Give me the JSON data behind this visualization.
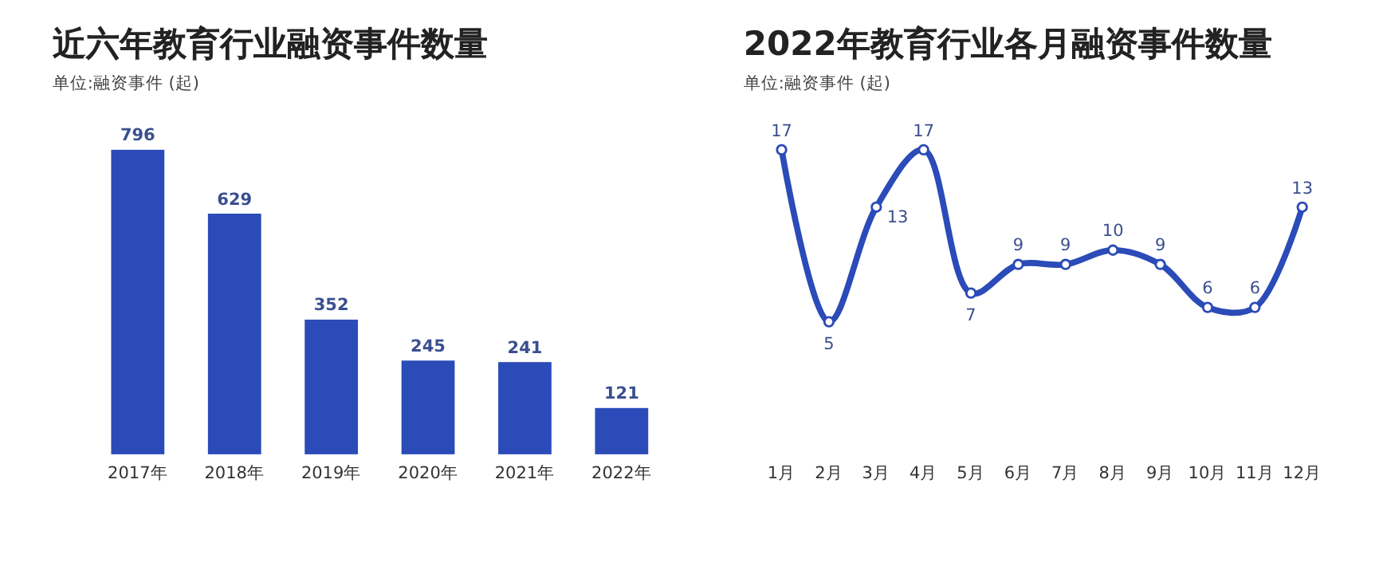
{
  "chart_data": [
    {
      "type": "bar",
      "title": "近六年教育行业融资事件数量",
      "subtitle": "单位:融资事件 (起)",
      "categories": [
        "2017年",
        "2018年",
        "2019年",
        "2020年",
        "2021年",
        "2022年"
      ],
      "values": [
        796,
        629,
        352,
        245,
        241,
        121
      ],
      "color": "#2b4bb8",
      "data_labels": true
    },
    {
      "type": "line",
      "title": "2022年教育行业各月融资事件数量",
      "subtitle": "单位:融资事件 (起)",
      "categories": [
        "1月",
        "2月",
        "3月",
        "4月",
        "5月",
        "6月",
        "7月",
        "8月",
        "9月",
        "10月",
        "11月",
        "12月"
      ],
      "values": [
        17,
        5,
        13,
        17,
        7,
        9,
        9,
        10,
        9,
        6,
        6,
        13
      ],
      "color": "#2b4bb8",
      "data_labels": true,
      "marker": "circle"
    }
  ]
}
